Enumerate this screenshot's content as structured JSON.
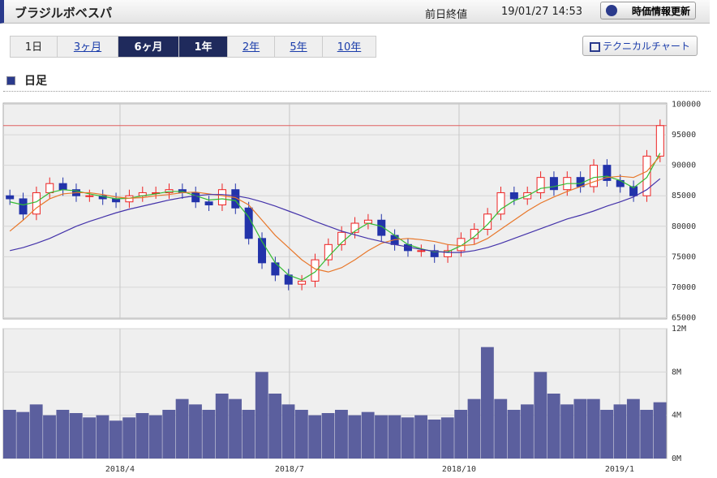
{
  "header": {
    "title": "ブラジルボベスパ",
    "prev_close_label": "前日終値",
    "datetime": "19/01/27 14:53",
    "refresh_button": "時価情報更新"
  },
  "tabs": [
    {
      "label": "1日",
      "active": false,
      "link": false
    },
    {
      "label": "3ヶ月",
      "active": false,
      "link": true
    },
    {
      "label": "6ヶ月",
      "active": true,
      "link": false
    },
    {
      "label": "1年",
      "active": true,
      "link": false
    },
    {
      "label": "2年",
      "active": false,
      "link": true
    },
    {
      "label": "5年",
      "active": false,
      "link": true
    },
    {
      "label": "10年",
      "active": false,
      "link": true
    }
  ],
  "technical_button": "テクニカルチャート",
  "section_title": "日足",
  "chart_data": [
    {
      "type": "candlestick",
      "up_color": "#ee2222",
      "down_color": "#2233aa",
      "x": [
        1,
        2,
        3,
        4,
        5,
        6,
        7,
        8,
        9,
        10,
        11,
        12,
        13,
        14,
        15,
        16,
        17,
        18,
        19,
        20,
        21,
        22,
        23,
        24,
        25,
        26,
        27,
        28,
        29,
        30,
        31,
        32,
        33,
        34,
        35,
        36,
        37,
        38,
        39,
        40,
        41,
        42,
        43,
        44,
        45,
        46,
        47,
        48,
        49,
        50
      ],
      "xlim": [
        0.5,
        50.5
      ],
      "xticks": [
        {
          "value": 9.3,
          "label": "2018/4"
        },
        {
          "value": 22.07,
          "label": "2018/7"
        },
        {
          "value": 34.85,
          "label": "2018/10"
        },
        {
          "value": 46.95,
          "label": "2019/1"
        }
      ],
      "open": [
        85000,
        84500,
        82000,
        85500,
        87000,
        86000,
        85000,
        85000,
        84500,
        84000,
        85000,
        85500,
        85500,
        86000,
        85500,
        84000,
        83500,
        86000,
        83000,
        78000,
        74000,
        72000,
        70500,
        71000,
        74500,
        77000,
        79000,
        80500,
        81000,
        78500,
        77000,
        76000,
        76000,
        75000,
        76000,
        78000,
        79500,
        82000,
        85500,
        84500,
        85500,
        88000,
        86000,
        88000,
        86500,
        90000,
        87500,
        86500,
        85000,
        91500
      ],
      "high": [
        86000,
        85500,
        86500,
        88000,
        88000,
        87000,
        86000,
        86000,
        85500,
        86000,
        86500,
        86500,
        87000,
        87000,
        86500,
        85000,
        87000,
        87000,
        84000,
        79000,
        75000,
        73000,
        72000,
        75500,
        78000,
        80000,
        81500,
        82000,
        82000,
        79500,
        78000,
        77000,
        77000,
        77000,
        79000,
        80500,
        83000,
        86500,
        86500,
        86500,
        89000,
        89000,
        89000,
        89000,
        91000,
        91000,
        88500,
        87500,
        92500,
        97500
      ],
      "low": [
        83500,
        81000,
        81000,
        84500,
        85000,
        84000,
        84000,
        83500,
        83000,
        83000,
        84000,
        84500,
        84500,
        84500,
        83000,
        82500,
        82500,
        82000,
        77000,
        73000,
        71000,
        69500,
        69500,
        70000,
        73500,
        76000,
        78000,
        79500,
        77500,
        76000,
        75000,
        75000,
        74000,
        74000,
        75000,
        77000,
        78500,
        81000,
        83500,
        83500,
        84500,
        85000,
        85000,
        85500,
        85500,
        86500,
        85500,
        84000,
        84000,
        90500
      ],
      "close": [
        84500,
        82000,
        85500,
        87000,
        86000,
        85000,
        85000,
        84500,
        84000,
        85000,
        85500,
        85500,
        86000,
        85500,
        84000,
        83500,
        86000,
        83000,
        78000,
        74000,
        72000,
        70500,
        71000,
        74500,
        77000,
        79000,
        80500,
        81000,
        78500,
        77000,
        76000,
        76000,
        75000,
        76000,
        78000,
        79500,
        82000,
        85500,
        84500,
        85500,
        88000,
        86000,
        88000,
        86500,
        90000,
        87500,
        86500,
        85000,
        91500,
        96500
      ],
      "lines": [
        {
          "color": "#33bb33",
          "values": [
            84000,
            83500,
            84000,
            85500,
            86000,
            85800,
            85300,
            84900,
            84500,
            84600,
            85000,
            85300,
            85700,
            85700,
            85000,
            84300,
            84500,
            84200,
            81500,
            77500,
            74000,
            72000,
            71200,
            72500,
            75000,
            77300,
            79200,
            80500,
            80000,
            78500,
            77000,
            76300,
            75800,
            75800,
            76800,
            78300,
            80300,
            82800,
            84200,
            85000,
            86200,
            86500,
            87000,
            87000,
            88000,
            88200,
            87500,
            86300,
            88000,
            92000
          ]
        },
        {
          "color": "#e8772a",
          "values": [
            79200,
            81000,
            83000,
            84500,
            85300,
            85500,
            85500,
            85200,
            84800,
            84600,
            84700,
            85000,
            85200,
            85500,
            85600,
            85300,
            85000,
            84700,
            83500,
            81000,
            78500,
            76500,
            74500,
            73000,
            72500,
            73200,
            74500,
            76000,
            77200,
            77800,
            78000,
            77800,
            77500,
            77000,
            76800,
            77000,
            78000,
            79500,
            81000,
            82500,
            83800,
            84800,
            85700,
            86500,
            87300,
            88000,
            88200,
            88000,
            89000,
            91500
          ]
        },
        {
          "color": "#4433aa",
          "values": [
            76000,
            76500,
            77200,
            78000,
            79000,
            80000,
            80800,
            81500,
            82200,
            82800,
            83300,
            83800,
            84300,
            84700,
            85000,
            85200,
            85200,
            85000,
            84600,
            84000,
            83300,
            82500,
            81700,
            80800,
            80000,
            79200,
            78600,
            78000,
            77500,
            77000,
            76600,
            76200,
            75900,
            75700,
            75700,
            76000,
            76500,
            77200,
            78000,
            78800,
            79600,
            80400,
            81200,
            81800,
            82500,
            83300,
            84000,
            84800,
            86000,
            87800
          ]
        }
      ],
      "hline": 96500,
      "hline_color": "#e06060",
      "ylim": [
        64800,
        100200
      ],
      "yticks": [
        65000,
        70000,
        75000,
        80000,
        85000,
        90000,
        95000,
        100000
      ],
      "grid": true
    },
    {
      "type": "bar",
      "color": "#5b5f9e",
      "x": [
        1,
        2,
        3,
        4,
        5,
        6,
        7,
        8,
        9,
        10,
        11,
        12,
        13,
        14,
        15,
        16,
        17,
        18,
        19,
        20,
        21,
        22,
        23,
        24,
        25,
        26,
        27,
        28,
        29,
        30,
        31,
        32,
        33,
        34,
        35,
        36,
        37,
        38,
        39,
        40,
        41,
        42,
        43,
        44,
        45,
        46,
        47,
        48,
        49,
        50
      ],
      "xlim": [
        0.5,
        50.5
      ],
      "values": [
        4.5,
        4.3,
        5.0,
        4.0,
        4.5,
        4.2,
        3.8,
        4.0,
        3.5,
        3.8,
        4.2,
        4.0,
        4.5,
        5.5,
        5.0,
        4.5,
        6.0,
        5.5,
        4.5,
        8.0,
        6.0,
        5.0,
        4.5,
        4.0,
        4.2,
        4.5,
        4.0,
        4.3,
        4.0,
        4.0,
        3.8,
        4.0,
        3.6,
        3.8,
        4.5,
        5.5,
        10.3,
        5.5,
        4.5,
        5.0,
        8.0,
        6.0,
        5.0,
        5.5,
        5.5,
        4.5,
        5.0,
        5.5,
        4.5,
        5.2
      ],
      "ylim": [
        0,
        12
      ],
      "yticks": [
        {
          "value": 0,
          "label": "0M"
        },
        {
          "value": 4,
          "label": "4M"
        },
        {
          "value": 8,
          "label": "8M"
        },
        {
          "value": 12,
          "label": "12M"
        }
      ],
      "grid": true
    }
  ]
}
